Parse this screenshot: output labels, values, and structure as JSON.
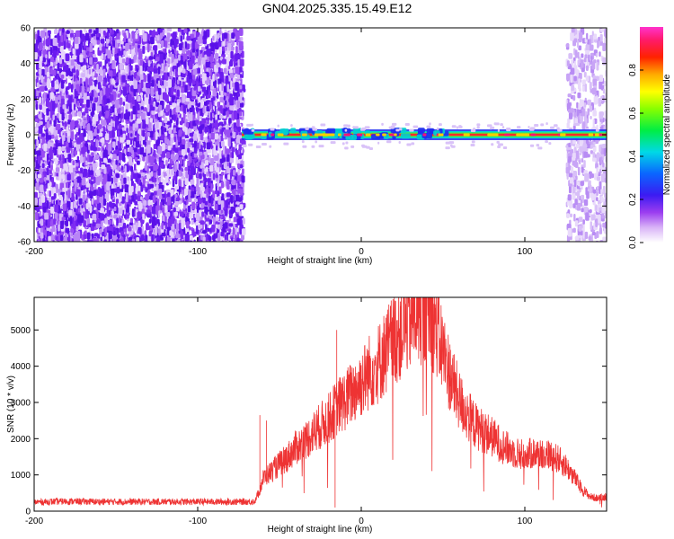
{
  "title": "GN04.2025.335.15.49.E12",
  "chart_data": [
    {
      "type": "heatmap",
      "xlabel": "Height of straight line (km)",
      "ylabel": "Frequency (Hz)",
      "xlim": [
        -200,
        150
      ],
      "ylim": [
        -60,
        60
      ],
      "xticks": [
        "-200",
        "-100",
        "0",
        "100"
      ],
      "yticks": [
        "60",
        "40",
        "20",
        "0",
        "-20",
        "-40",
        "-60"
      ],
      "colorbar": {
        "label": "Normalized spectral amplitude",
        "range": [
          0.0,
          1.0
        ],
        "ticks": [
          "0.0",
          "0.2",
          "0.4",
          "0.6",
          "0.8"
        ]
      },
      "features": {
        "noise_region_km": [
          -200,
          -73
        ],
        "quiet_region_km": [
          -73,
          125
        ],
        "noise_region_right_km": [
          125,
          150
        ],
        "signal_band_hz": 0,
        "signal_band_km": [
          -73,
          150
        ]
      }
    },
    {
      "type": "line",
      "xlabel": "Height of straight line (km)",
      "ylabel": "SNR (10 * v/v)",
      "xlim": [
        -200,
        150
      ],
      "ylim": [
        0,
        5900
      ],
      "xticks": [
        "-200",
        "-100",
        "0",
        "100"
      ],
      "yticks": [
        "0",
        "1000",
        "2000",
        "3000",
        "4000",
        "5000"
      ],
      "color": "#ee3333",
      "series": [
        {
          "x": [
            -200,
            -180,
            -160,
            -140,
            -120,
            -100,
            -80,
            -70,
            -65,
            -62,
            -60,
            -55,
            -50,
            -45,
            -40,
            -35,
            -30,
            -25,
            -20,
            -15,
            -10,
            -5,
            0,
            5,
            10,
            15,
            20,
            25,
            30,
            35,
            40,
            45,
            50,
            55,
            60,
            65,
            70,
            75,
            80,
            85,
            90,
            95,
            100,
            105,
            110,
            115,
            120,
            125,
            130,
            135,
            140,
            145,
            150
          ],
          "values": [
            250,
            270,
            260,
            260,
            260,
            260,
            260,
            260,
            270,
            600,
            900,
            1100,
            1300,
            1500,
            1750,
            1900,
            2150,
            2350,
            2550,
            2850,
            3050,
            3300,
            3550,
            3850,
            4050,
            4400,
            4750,
            5050,
            5300,
            5550,
            5600,
            5200,
            4400,
            3650,
            3050,
            2650,
            2350,
            2200,
            2050,
            1850,
            1700,
            1600,
            1550,
            1600,
            1600,
            1550,
            1450,
            1250,
            950,
            600,
            400,
            350,
            400
          ]
        }
      ]
    }
  ]
}
